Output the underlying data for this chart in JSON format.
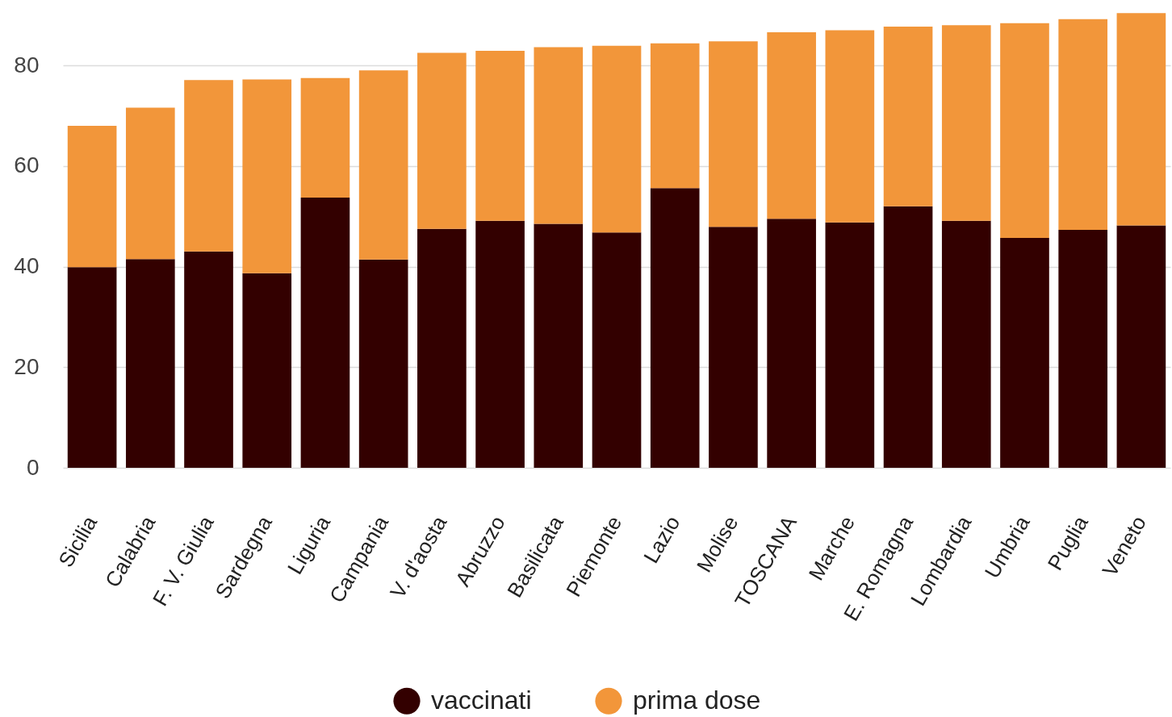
{
  "chart_data": {
    "type": "bar",
    "stacked": true,
    "categories": [
      "Sicilia",
      "Calabria",
      "F. V. Giulia",
      "Sardegna",
      "Liguria",
      "Campania",
      "V. d'aosta",
      "Abruzzo",
      "Basilicata",
      "Piemonte",
      "Lazio",
      "Molise",
      "TOSCANA",
      "Marche",
      "E. Romagna",
      "Lombardia",
      "Umbria",
      "Puglia",
      "Veneto"
    ],
    "series": [
      {
        "name": "vaccinati",
        "color": "#330000",
        "values": [
          39.9,
          41.5,
          43.0,
          38.7,
          53.7,
          41.4,
          47.5,
          49.1,
          48.5,
          46.8,
          55.6,
          47.9,
          49.5,
          48.8,
          52.0,
          49.1,
          45.7,
          47.3,
          48.2
        ]
      },
      {
        "name": "prima dose",
        "color": "#f2963a",
        "values": [
          28.1,
          30.1,
          34.1,
          38.5,
          23.8,
          37.6,
          35.0,
          33.8,
          35.1,
          37.1,
          28.8,
          36.9,
          37.1,
          38.2,
          35.7,
          38.9,
          42.7,
          41.9,
          42.2
        ]
      }
    ],
    "ylim": [
      0,
      93
    ],
    "yticks": [
      0,
      20,
      40,
      60,
      80
    ],
    "grid": "y",
    "legend": "bottom"
  }
}
